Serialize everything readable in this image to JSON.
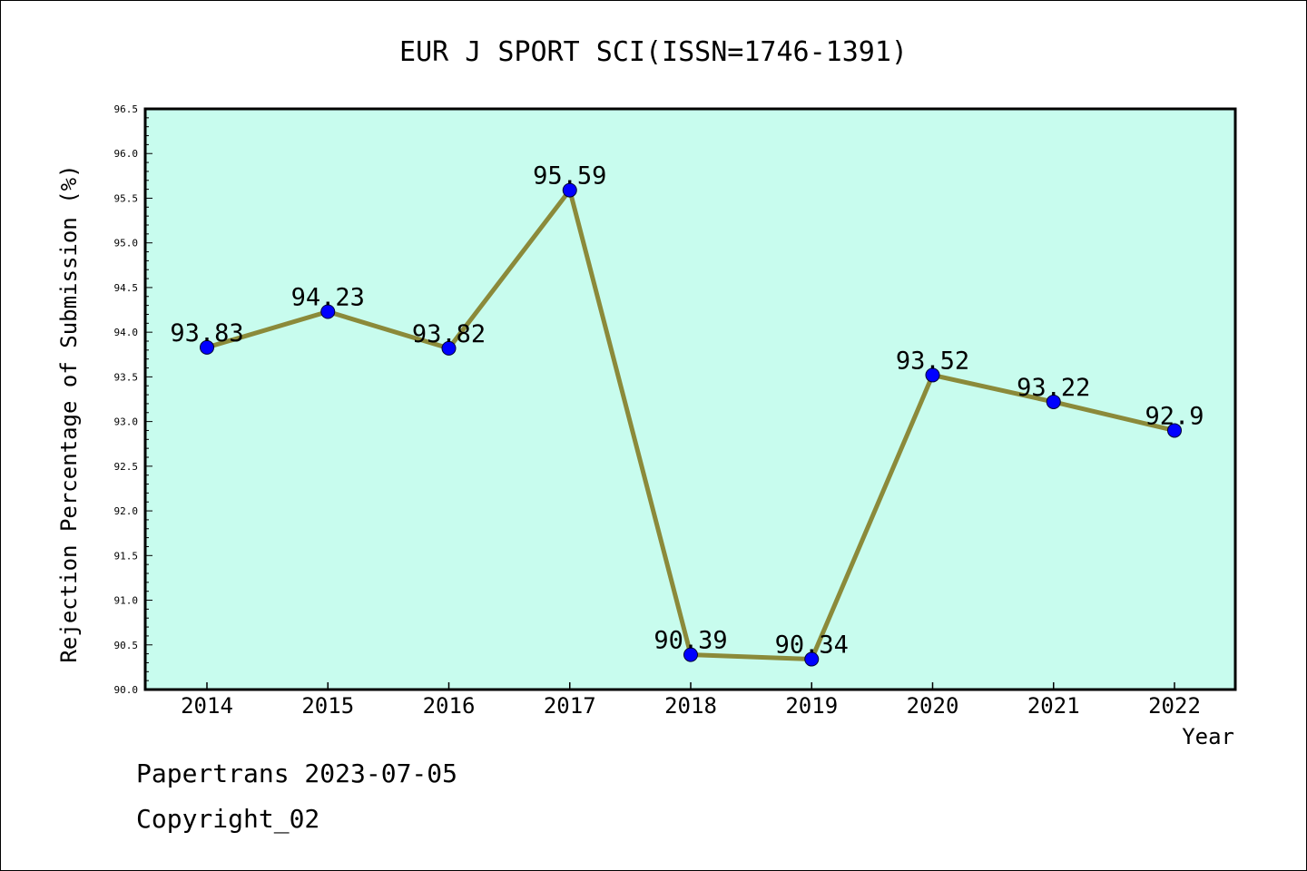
{
  "chart_data": {
    "type": "line",
    "title": "EUR J SPORT SCI(ISSN=1746-1391)",
    "xlabel": "Year",
    "ylabel": "Rejection Percentage of Submission (%)",
    "categories": [
      "2014",
      "2015",
      "2016",
      "2017",
      "2018",
      "2019",
      "2020",
      "2021",
      "2022"
    ],
    "values": [
      93.83,
      94.23,
      93.82,
      95.59,
      90.39,
      90.34,
      93.52,
      93.22,
      92.9
    ],
    "data_labels": [
      "93.83",
      "94.23",
      "93.82",
      "95.59",
      "90.39",
      "90.34",
      "93.52",
      "93.22",
      "92.9"
    ],
    "ylim": [
      90.0,
      96.5
    ],
    "yticks": [
      "90.0",
      "90.5",
      "91.0",
      "91.5",
      "92.0",
      "92.5",
      "93.0",
      "93.5",
      "94.0",
      "94.5",
      "95.0",
      "95.5",
      "96.0",
      "96.5"
    ],
    "grid": false,
    "colors": {
      "plot_background": "#c8fcee",
      "line": "#8b8a3a",
      "marker": "#0000ff"
    }
  },
  "footer": {
    "source": "Papertrans 2023-07-05",
    "copyright": "Copyright_02"
  }
}
